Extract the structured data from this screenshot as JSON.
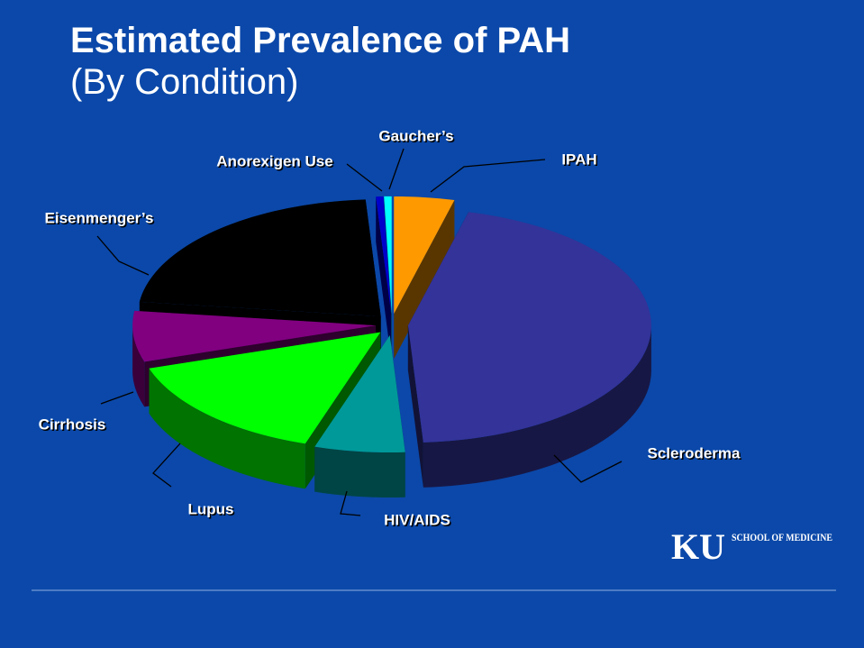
{
  "chart_data": {
    "type": "pie3d",
    "title": "Estimated Prevalence of PAH",
    "subtitle": "(By Condition)",
    "categories": [
      "IPAH",
      "Scleroderma",
      "HIV/AIDS",
      "Lupus",
      "Cirrhosis",
      "Eisenmenger’s",
      "Anorexigen Use",
      "Gaucher’s"
    ],
    "values": [
      4,
      45,
      6,
      15,
      7,
      22,
      0.5,
      0.5
    ],
    "colors": [
      "#ff9900",
      "#333399",
      "#009999",
      "#00ff00",
      "#800080",
      "#000000",
      "#0000cc",
      "#00ffff"
    ]
  },
  "logo": {
    "mark": "KU",
    "text": "SCHOOL OF MEDICINE"
  }
}
